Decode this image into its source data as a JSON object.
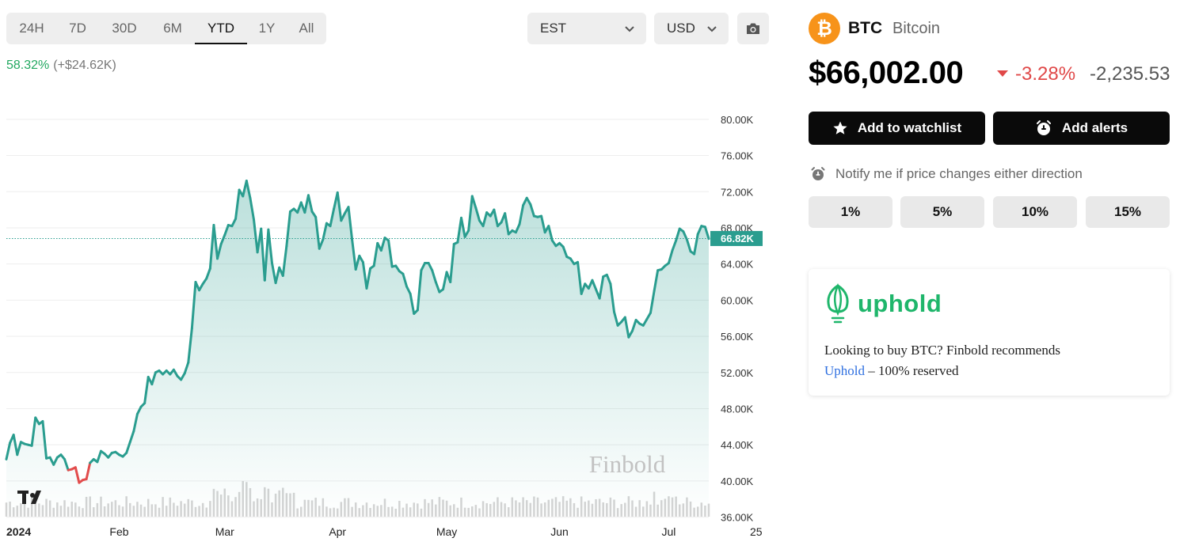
{
  "range_tabs": [
    {
      "label": "24H"
    },
    {
      "label": "7D"
    },
    {
      "label": "30D"
    },
    {
      "label": "6M"
    },
    {
      "label": "YTD",
      "active": true
    },
    {
      "label": "1Y"
    },
    {
      "label": "All"
    }
  ],
  "timezone": {
    "value": "EST"
  },
  "currency": {
    "value": "USD"
  },
  "camera_icon": "camera-icon",
  "performance": {
    "percent": "58.32%",
    "absolute": "(+$24.62K)"
  },
  "asset": {
    "symbol": "BTC",
    "name": "Bitcoin",
    "logo_icon": "bitcoin-icon",
    "price": "$66,002.00",
    "change_percent": "-3.28%",
    "change_absolute": "-2,235.53"
  },
  "actions": {
    "watchlist": "Add to watchlist",
    "alerts": "Add alerts"
  },
  "notify": {
    "text": "Notify me if price changes either direction"
  },
  "percent_options": [
    "1%",
    "5%",
    "10%",
    "15%"
  ],
  "ad": {
    "brand": "uphold",
    "text_before": "Looking to buy BTC? Finbold recommends",
    "link": "Uphold",
    "text_after": " – 100% reserved"
  },
  "watermark": "Finbold",
  "colors": {
    "line_up": "#2a9d8f",
    "line_down": "#e24c4c",
    "price_tag": "#2a9d8f",
    "positive": "#22a860",
    "negative": "#e04848"
  },
  "chart_data": {
    "type": "area",
    "title": "",
    "xlabel": "",
    "ylabel": "",
    "ylim": [
      35000,
      82000
    ],
    "yticks": [
      "80.00K",
      "76.00K",
      "72.00K",
      "68.00K",
      "64.00K",
      "60.00K",
      "56.00K",
      "52.00K",
      "48.00K",
      "44.00K",
      "40.00K",
      "36.00K"
    ],
    "ytick_values": [
      80000,
      76000,
      72000,
      68000,
      64000,
      60000,
      56000,
      52000,
      48000,
      44000,
      40000,
      36000
    ],
    "xticks": [
      {
        "label": "2024",
        "day": 1
      },
      {
        "label": "Feb",
        "day": 32
      },
      {
        "label": "Mar",
        "day": 61
      },
      {
        "label": "Apr",
        "day": 92
      },
      {
        "label": "May",
        "day": 122
      },
      {
        "label": "Jun",
        "day": 153
      },
      {
        "label": "Jul",
        "day": 183
      },
      {
        "label": "25",
        "day": 207
      }
    ],
    "last_price_label": "66.82K",
    "last_price": 66820,
    "grid": true,
    "series": [
      {
        "values": [
          42400,
          44200,
          45100,
          42900,
          44300,
          44100,
          44000,
          43900,
          47000,
          46300,
          46600,
          42500,
          42600,
          41800,
          42600,
          42900,
          42400,
          41200,
          41300,
          41500,
          39800,
          40100,
          40200,
          42000,
          42400,
          42100,
          43300,
          43000,
          42600,
          43100,
          43200,
          42900,
          42700,
          43100,
          44300,
          45500,
          47400,
          48200,
          48600,
          51500,
          50700,
          52000,
          52200,
          51800,
          52200,
          51800,
          52300,
          51600,
          51200,
          51900,
          53100,
          56900,
          62000,
          61100,
          61800,
          62400,
          63500,
          68300,
          64600,
          66200,
          67200,
          68300,
          68200,
          69000,
          72200,
          71500,
          73200,
          71300,
          68900,
          65300,
          67900,
          62200,
          67800,
          64100,
          61900,
          63600,
          62700,
          66000,
          69800,
          70100,
          69700,
          70800,
          69700,
          71600,
          69800,
          69200,
          65700,
          66700,
          68500,
          68200,
          70100,
          71900,
          68800,
          69600,
          70300,
          66700,
          63400,
          64900,
          64200,
          61300,
          63500,
          63800,
          66300,
          65500,
          66900,
          66600,
          63700,
          63800,
          63200,
          62900,
          61500,
          60700,
          58500,
          58900,
          63300,
          64100,
          64100,
          63300,
          62000,
          60900,
          61200,
          63100,
          62000,
          66200,
          66400,
          69100,
          67000,
          67700,
          71500,
          70200,
          68800,
          68200,
          69700,
          69300,
          70000,
          68200,
          68600,
          69600,
          67300,
          67700,
          67500,
          68400,
          70500,
          71300,
          70600,
          69300,
          69200,
          69300,
          67500,
          68200,
          66600,
          66000,
          66300,
          65900,
          64800,
          64600,
          64000,
          64200,
          60700,
          61800,
          61300,
          62200,
          61200,
          60200,
          62600,
          62800,
          61800,
          58700,
          57200,
          57600,
          58100,
          55900,
          56600,
          57800,
          57400,
          57200,
          57900,
          58600,
          61000,
          63300,
          63400,
          63800,
          64100,
          65500,
          66600,
          67900,
          67600,
          66700,
          65400,
          65100,
          67300,
          68200,
          68100,
          66800
        ]
      }
    ]
  }
}
